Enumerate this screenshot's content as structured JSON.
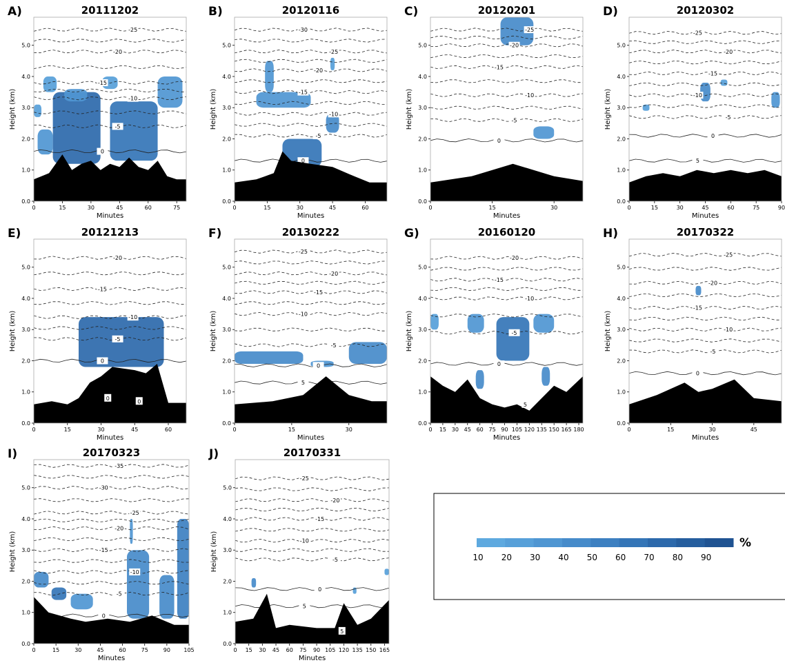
{
  "colorbar": {
    "ticks": [
      "10",
      "20",
      "30",
      "40",
      "50",
      "60",
      "70",
      "80",
      "90"
    ],
    "unit": "%",
    "colors": [
      "#5ea9df",
      "#57a0d9",
      "#4f96d2",
      "#468bca",
      "#3d80c1",
      "#3475b7",
      "#2c69ab",
      "#255e9e",
      "#1f5392"
    ]
  },
  "chart_data": [
    {
      "type": "heatmap",
      "letter": "A)",
      "title": "20111202",
      "xlabel": "Minutes",
      "ylabel": "Height (km)",
      "xlim": [
        0,
        80
      ],
      "ylim": [
        0,
        5.9
      ],
      "xticks": [
        0,
        15,
        30,
        45,
        60,
        75
      ],
      "yticks": [
        0.0,
        1.0,
        2.0,
        3.0,
        4.0,
        5.0
      ],
      "terrain_x": [
        0,
        8,
        15,
        20,
        25,
        30,
        35,
        40,
        45,
        50,
        55,
        60,
        65,
        70,
        75,
        80
      ],
      "terrain_h": [
        0.7,
        0.9,
        1.5,
        1.0,
        1.2,
        1.3,
        1.0,
        1.2,
        1.1,
        1.4,
        1.1,
        1.0,
        1.3,
        0.8,
        0.7,
        0.7
      ],
      "contours": [
        {
          "level": "0",
          "h": 1.6
        },
        {
          "level": "-5",
          "h": 2.4
        },
        {
          "level": "-10",
          "h": 3.3
        },
        {
          "level": "-15",
          "h": 3.8
        },
        {
          "level": "-20",
          "h": 4.8
        },
        {
          "level": "-25",
          "h": 5.5
        }
      ],
      "blobs": [
        {
          "x": [
            10,
            35
          ],
          "y": [
            1.2,
            3.5
          ],
          "p": 70
        },
        {
          "x": [
            40,
            65
          ],
          "y": [
            1.3,
            3.2
          ],
          "p": 55
        },
        {
          "x": [
            16,
            28
          ],
          "y": [
            3.2,
            3.6
          ],
          "p": 30
        },
        {
          "x": [
            2,
            10
          ],
          "y": [
            1.5,
            2.3
          ],
          "p": 30
        },
        {
          "x": [
            0,
            4
          ],
          "y": [
            2.7,
            3.1
          ],
          "p": 20
        },
        {
          "x": [
            5,
            12
          ],
          "y": [
            3.5,
            4.0
          ],
          "p": 20
        },
        {
          "x": [
            36,
            44
          ],
          "y": [
            3.6,
            4.0
          ],
          "p": 20
        },
        {
          "x": [
            65,
            78
          ],
          "y": [
            3.0,
            4.0
          ],
          "p": 30
        }
      ]
    },
    {
      "type": "heatmap",
      "letter": "B)",
      "title": "20120116",
      "xlabel": "Minutes",
      "ylabel": "Height (km)",
      "xlim": [
        0,
        70
      ],
      "ylim": [
        0,
        5.9
      ],
      "xticks": [
        0,
        15,
        30,
        45,
        60
      ],
      "yticks": [
        0.0,
        1.0,
        2.0,
        3.0,
        4.0,
        5.0
      ],
      "terrain_x": [
        0,
        10,
        18,
        22,
        26,
        35,
        45,
        55,
        62,
        70
      ],
      "terrain_h": [
        0.6,
        0.7,
        0.9,
        1.6,
        1.3,
        1.2,
        1.1,
        0.8,
        0.6,
        0.6
      ],
      "contours": [
        {
          "level": "0",
          "h": 1.3
        },
        {
          "level": "-5",
          "h": 2.1
        },
        {
          "level": "-10",
          "h": 2.8
        },
        {
          "level": "-15",
          "h": 3.5
        },
        {
          "level": "-20",
          "h": 4.2
        },
        {
          "level": "-25",
          "h": 4.8
        },
        {
          "level": "-30",
          "h": 5.5
        }
      ],
      "blobs": [
        {
          "x": [
            22,
            40
          ],
          "y": [
            1.1,
            2.0
          ],
          "p": 60
        },
        {
          "x": [
            10,
            35
          ],
          "y": [
            3.0,
            3.5
          ],
          "p": 30
        },
        {
          "x": [
            14,
            18
          ],
          "y": [
            3.5,
            4.5
          ],
          "p": 30
        },
        {
          "x": [
            42,
            48
          ],
          "y": [
            2.2,
            2.8
          ],
          "p": 40
        },
        {
          "x": [
            44,
            46
          ],
          "y": [
            4.2,
            4.6
          ],
          "p": 20
        }
      ]
    },
    {
      "type": "heatmap",
      "letter": "C)",
      "title": "20120201",
      "xlabel": "Minutes",
      "ylabel": "Height (km)",
      "xlim": [
        0,
        37
      ],
      "ylim": [
        0,
        5.9
      ],
      "xticks": [
        0,
        15,
        30
      ],
      "yticks": [
        0.0,
        1.0,
        2.0,
        3.0,
        4.0,
        5.0
      ],
      "terrain_x": [
        0,
        10,
        20,
        30,
        37
      ],
      "terrain_h": [
        0.6,
        0.8,
        1.2,
        0.8,
        0.65
      ],
      "contours": [
        {
          "level": "0",
          "h": 1.95
        },
        {
          "level": "-5",
          "h": 2.6
        },
        {
          "level": "-10",
          "h": 3.4
        },
        {
          "level": "-15",
          "h": 4.3
        },
        {
          "level": "-20",
          "h": 5.0
        },
        {
          "level": "-25",
          "h": 5.5
        }
      ],
      "blobs": [
        {
          "x": [
            17,
            25
          ],
          "y": [
            5.0,
            5.9
          ],
          "p": 40
        },
        {
          "x": [
            25,
            30
          ],
          "y": [
            2.0,
            2.4
          ],
          "p": 30
        }
      ]
    },
    {
      "type": "heatmap",
      "letter": "D)",
      "title": "20120302",
      "xlabel": "Minutes",
      "ylabel": "Height (km)",
      "xlim": [
        0,
        90
      ],
      "ylim": [
        0,
        5.9
      ],
      "xticks": [
        0,
        15,
        30,
        45,
        60,
        75,
        90
      ],
      "yticks": [
        0.0,
        1.0,
        2.0,
        3.0,
        4.0,
        5.0
      ],
      "terrain_x": [
        0,
        10,
        20,
        30,
        40,
        50,
        60,
        70,
        80,
        90
      ],
      "terrain_h": [
        0.6,
        0.8,
        0.9,
        0.8,
        1.0,
        0.9,
        1.0,
        0.9,
        1.0,
        0.8
      ],
      "contours": [
        {
          "level": "5",
          "h": 1.3
        },
        {
          "level": "0",
          "h": 2.1
        },
        {
          "level": "-5",
          "h": 2.7
        },
        {
          "level": "-10",
          "h": 3.4
        },
        {
          "level": "-15",
          "h": 4.1
        },
        {
          "level": "-20",
          "h": 4.8
        },
        {
          "level": "-25",
          "h": 5.4
        }
      ],
      "blobs": [
        {
          "x": [
            42,
            48
          ],
          "y": [
            3.2,
            3.8
          ],
          "p": 40
        },
        {
          "x": [
            84,
            89
          ],
          "y": [
            3.0,
            3.5
          ],
          "p": 30
        },
        {
          "x": [
            8,
            12
          ],
          "y": [
            2.9,
            3.1
          ],
          "p": 20
        },
        {
          "x": [
            54,
            58
          ],
          "y": [
            3.7,
            3.9
          ],
          "p": 20
        }
      ]
    },
    {
      "type": "heatmap",
      "letter": "E)",
      "title": "20121213",
      "xlabel": "Minutes",
      "ylabel": "Height (km)",
      "xlim": [
        0,
        68
      ],
      "ylim": [
        0,
        5.9
      ],
      "xticks": [
        0,
        15,
        30,
        45,
        60
      ],
      "yticks": [
        0.0,
        1.0,
        2.0,
        3.0,
        4.0,
        5.0
      ],
      "terrain_x": [
        0,
        8,
        15,
        20,
        25,
        30,
        35,
        45,
        50,
        55,
        60,
        68
      ],
      "terrain_h": [
        0.6,
        0.7,
        0.6,
        0.8,
        1.3,
        1.5,
        1.8,
        1.7,
        1.6,
        1.9,
        0.65,
        0.65
      ],
      "labels0": [
        {
          "x": 33,
          "h": 0.8
        },
        {
          "x": 47,
          "h": 0.7
        }
      ],
      "contours": [
        {
          "level": "0",
          "h": 2.0
        },
        {
          "level": "-5",
          "h": 2.7
        },
        {
          "level": "-10",
          "h": 3.4
        },
        {
          "level": "-15",
          "h": 4.3
        },
        {
          "level": "-20",
          "h": 5.3
        }
      ],
      "blobs": [
        {
          "x": [
            20,
            58
          ],
          "y": [
            1.8,
            3.4
          ],
          "p": 65
        }
      ]
    },
    {
      "type": "heatmap",
      "letter": "F)",
      "title": "20130222",
      "xlabel": "Minutes",
      "ylabel": "Height (km)",
      "xlim": [
        0,
        40
      ],
      "ylim": [
        0,
        5.9
      ],
      "xticks": [
        0,
        15,
        30
      ],
      "yticks": [
        0.0,
        1.0,
        2.0,
        3.0,
        4.0,
        5.0
      ],
      "terrain_x": [
        0,
        10,
        18,
        24,
        30,
        36,
        40
      ],
      "terrain_h": [
        0.6,
        0.7,
        0.9,
        1.5,
        0.9,
        0.7,
        0.7
      ],
      "contours": [
        {
          "level": "5",
          "h": 1.3
        },
        {
          "level": "0",
          "h": 1.85
        },
        {
          "level": "-5",
          "h": 2.5
        },
        {
          "level": "-10",
          "h": 3.5
        },
        {
          "level": "-15",
          "h": 4.2
        },
        {
          "level": "-20",
          "h": 4.8
        },
        {
          "level": "-25",
          "h": 5.5
        }
      ],
      "blobs": [
        {
          "x": [
            0,
            18
          ],
          "y": [
            1.9,
            2.3
          ],
          "p": 40
        },
        {
          "x": [
            30,
            40
          ],
          "y": [
            1.9,
            2.6
          ],
          "p": 40
        },
        {
          "x": [
            20,
            26
          ],
          "y": [
            1.8,
            2.0
          ],
          "p": 30
        }
      ]
    },
    {
      "type": "heatmap",
      "letter": "G)",
      "title": "20160120",
      "xlabel": "Minutes",
      "ylabel": "Height (km)",
      "xlim": [
        0,
        185
      ],
      "ylim": [
        0,
        5.9
      ],
      "xticks": [
        0,
        15,
        30,
        45,
        60,
        75,
        90,
        105,
        120,
        135,
        150,
        165,
        180
      ],
      "yticks": [
        0.0,
        1.0,
        2.0,
        3.0,
        4.0,
        5.0
      ],
      "terrain_x": [
        0,
        15,
        30,
        45,
        60,
        75,
        90,
        105,
        120,
        135,
        150,
        165,
        185
      ],
      "terrain_h": [
        1.5,
        1.2,
        1.0,
        1.4,
        0.8,
        0.6,
        0.5,
        0.6,
        0.4,
        0.8,
        1.2,
        1.0,
        1.5
      ],
      "labels0": [
        {
          "x": 115,
          "h": 0.6,
          "text": "5"
        }
      ],
      "contours": [
        {
          "level": "0",
          "h": 1.9
        },
        {
          "level": "-5",
          "h": 2.9
        },
        {
          "level": "-10",
          "h": 4.0
        },
        {
          "level": "-15",
          "h": 4.6
        },
        {
          "level": "-20",
          "h": 5.3
        }
      ],
      "blobs": [
        {
          "x": [
            80,
            120
          ],
          "y": [
            2.0,
            3.4
          ],
          "p": 55
        },
        {
          "x": [
            45,
            65
          ],
          "y": [
            2.9,
            3.5
          ],
          "p": 30
        },
        {
          "x": [
            125,
            150
          ],
          "y": [
            2.9,
            3.5
          ],
          "p": 30
        },
        {
          "x": [
            0,
            10
          ],
          "y": [
            3.0,
            3.5
          ],
          "p": 20
        },
        {
          "x": [
            55,
            65
          ],
          "y": [
            1.1,
            1.7
          ],
          "p": 40
        },
        {
          "x": [
            135,
            145
          ],
          "y": [
            1.2,
            1.8
          ],
          "p": 40
        }
      ]
    },
    {
      "type": "heatmap",
      "letter": "H)",
      "title": "20170322",
      "xlabel": "Minutes",
      "ylabel": "Height (km)",
      "xlim": [
        0,
        55
      ],
      "ylim": [
        0,
        5.9
      ],
      "xticks": [
        0,
        15,
        30,
        45
      ],
      "yticks": [
        0.0,
        1.0,
        2.0,
        3.0,
        4.0,
        5.0
      ],
      "terrain_x": [
        0,
        10,
        20,
        25,
        30,
        38,
        45,
        55
      ],
      "terrain_h": [
        0.6,
        0.9,
        1.3,
        1.0,
        1.1,
        1.4,
        0.8,
        0.7
      ],
      "contours": [
        {
          "level": "0",
          "h": 1.6
        },
        {
          "level": "-5",
          "h": 2.3
        },
        {
          "level": "-10",
          "h": 3.0
        },
        {
          "level": "-15",
          "h": 3.7
        },
        {
          "level": "-20",
          "h": 4.5
        },
        {
          "level": "-25",
          "h": 5.4
        }
      ],
      "blobs": [
        {
          "x": [
            24,
            26
          ],
          "y": [
            4.1,
            4.4
          ],
          "p": 40
        }
      ]
    },
    {
      "type": "heatmap",
      "letter": "I)",
      "title": "20170323",
      "xlabel": "Minutes",
      "ylabel": "Height (km)",
      "xlim": [
        0,
        105
      ],
      "ylim": [
        0,
        5.9
      ],
      "xticks": [
        0,
        15,
        30,
        45,
        60,
        75,
        90,
        105
      ],
      "yticks": [
        0.0,
        1.0,
        2.0,
        3.0,
        4.0,
        5.0
      ],
      "terrain_x": [
        0,
        10,
        25,
        35,
        50,
        65,
        80,
        95,
        105
      ],
      "terrain_h": [
        1.5,
        1.0,
        0.8,
        0.7,
        0.8,
        0.7,
        0.9,
        0.6,
        0.6
      ],
      "contours": [
        {
          "level": "0",
          "h": 0.9
        },
        {
          "level": "-5",
          "h": 1.6
        },
        {
          "level": "-10",
          "h": 2.3
        },
        {
          "level": "-15",
          "h": 3.0
        },
        {
          "level": "-20",
          "h": 3.7
        },
        {
          "level": "-25",
          "h": 4.2
        },
        {
          "level": "-30",
          "h": 5.0
        },
        {
          "level": "-35",
          "h": 5.7
        }
      ],
      "blobs": [
        {
          "x": [
            0,
            10
          ],
          "y": [
            1.8,
            2.3
          ],
          "p": 40
        },
        {
          "x": [
            12,
            22
          ],
          "y": [
            1.4,
            1.8
          ],
          "p": 55
        },
        {
          "x": [
            25,
            40
          ],
          "y": [
            1.1,
            1.6
          ],
          "p": 30
        },
        {
          "x": [
            63,
            78
          ],
          "y": [
            0.8,
            3.0
          ],
          "p": 40
        },
        {
          "x": [
            65,
            67
          ],
          "y": [
            3.2,
            4.0
          ],
          "p": 30
        },
        {
          "x": [
            85,
            95
          ],
          "y": [
            0.8,
            2.2
          ],
          "p": 40
        },
        {
          "x": [
            97,
            105
          ],
          "y": [
            0.8,
            4.0
          ],
          "p": 50
        }
      ]
    },
    {
      "type": "heatmap",
      "letter": "J)",
      "title": "20170331",
      "xlabel": "Minutes",
      "ylabel": "Height (km)",
      "xlim": [
        0,
        170
      ],
      "ylim": [
        0,
        5.9
      ],
      "xticks": [
        0,
        15,
        30,
        45,
        60,
        75,
        90,
        105,
        120,
        135,
        150,
        165
      ],
      "yticks": [
        0.0,
        1.0,
        2.0,
        3.0,
        4.0,
        5.0
      ],
      "terrain_x": [
        0,
        20,
        35,
        45,
        60,
        90,
        110,
        120,
        135,
        150,
        170
      ],
      "terrain_h": [
        0.7,
        0.8,
        1.6,
        0.5,
        0.6,
        0.5,
        0.5,
        1.3,
        0.6,
        0.8,
        1.4
      ],
      "labels0": [
        {
          "x": 118,
          "h": 0.4,
          "text": "5"
        }
      ],
      "contours": [
        {
          "level": "5",
          "h": 1.2
        },
        {
          "level": "0",
          "h": 1.75
        },
        {
          "level": "-5",
          "h": 2.7
        },
        {
          "level": "-10",
          "h": 3.3
        },
        {
          "level": "-15",
          "h": 4.0
        },
        {
          "level": "-20",
          "h": 4.6
        },
        {
          "level": "-25",
          "h": 5.3
        }
      ],
      "blobs": [
        {
          "x": [
            18,
            23
          ],
          "y": [
            1.8,
            2.1
          ],
          "p": 40
        },
        {
          "x": [
            130,
            134
          ],
          "y": [
            1.6,
            1.8
          ],
          "p": 20
        },
        {
          "x": [
            165,
            170
          ],
          "y": [
            2.2,
            2.4
          ],
          "p": 20
        }
      ]
    }
  ]
}
